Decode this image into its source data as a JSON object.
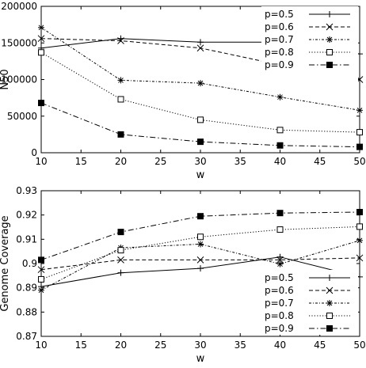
{
  "chart_data": [
    {
      "type": "line",
      "xlabel": "w",
      "ylabel": "N50",
      "x": [
        10,
        20,
        30,
        40,
        50
      ],
      "xlim": [
        10,
        50
      ],
      "xticks": [
        10,
        15,
        20,
        25,
        30,
        35,
        40,
        45,
        50
      ],
      "xtick_labels": [
        "10",
        "15",
        "20",
        "25",
        "30",
        "35",
        "40",
        "45",
        "50"
      ],
      "ylim": [
        0,
        200000
      ],
      "yticks": [
        0,
        50000,
        100000,
        150000,
        200000
      ],
      "ytick_labels": [
        "0",
        "50000",
        "100000",
        "150000",
        "200000"
      ],
      "grid": false,
      "legend_position": "top-right",
      "series": [
        {
          "name": "p=0.5",
          "values": [
            143000,
            156000,
            151000,
            151000,
            135000
          ],
          "color": "#000000",
          "line_style": "solid",
          "marker": "plus"
        },
        {
          "name": "p=0.6",
          "values": [
            156000,
            153000,
            143000,
            120000,
            100000
          ],
          "color": "#000000",
          "line_style": "dashed",
          "marker": "x"
        },
        {
          "name": "p=0.7",
          "values": [
            171000,
            99000,
            95000,
            76000,
            58000
          ],
          "color": "#000000",
          "line_style": "dotted-dashed",
          "marker": "star"
        },
        {
          "name": "p=0.8",
          "values": [
            137000,
            73000,
            45000,
            31000,
            28000
          ],
          "color": "#000000",
          "line_style": "dotted",
          "marker": "open-square"
        },
        {
          "name": "p=0.9",
          "values": [
            68000,
            25000,
            15000,
            10000,
            8000
          ],
          "color": "#000000",
          "line_style": "dash-dot",
          "marker": "filled-square"
        }
      ]
    },
    {
      "type": "line",
      "xlabel": "w",
      "ylabel": "Genome Coverage",
      "x": [
        10,
        20,
        30,
        40,
        50
      ],
      "xlim": [
        10,
        50
      ],
      "xticks": [
        10,
        15,
        20,
        25,
        30,
        35,
        40,
        45,
        50
      ],
      "xtick_labels": [
        "10",
        "15",
        "20",
        "25",
        "30",
        "35",
        "40",
        "45",
        "50"
      ],
      "ylim": [
        0.87,
        0.93
      ],
      "yticks": [
        0.87,
        0.88,
        0.89,
        0.9,
        0.91,
        0.92,
        0.93
      ],
      "ytick_labels": [
        "0.87",
        "0.88",
        "0.89",
        "0.9",
        "0.91",
        "0.92",
        "0.93"
      ],
      "grid": false,
      "legend_position": "bottom-right",
      "series": [
        {
          "name": "p=0.5",
          "values": [
            0.8905,
            0.8962,
            0.898,
            0.9027,
            0.8945
          ],
          "color": "#000000",
          "line_style": "solid",
          "marker": "plus"
        },
        {
          "name": "p=0.6",
          "values": [
            0.8975,
            0.9015,
            0.9015,
            0.9015,
            0.9023
          ],
          "color": "#000000",
          "line_style": "dashed",
          "marker": "x"
        },
        {
          "name": "p=0.7",
          "values": [
            0.889,
            0.9065,
            0.908,
            0.8998,
            0.9095
          ],
          "color": "#000000",
          "line_style": "dotted-dashed",
          "marker": "star"
        },
        {
          "name": "p=0.8",
          "values": [
            0.8935,
            0.9055,
            0.911,
            0.914,
            0.9152
          ],
          "color": "#000000",
          "line_style": "dotted",
          "marker": "open-square"
        },
        {
          "name": "p=0.9",
          "values": [
            0.9015,
            0.913,
            0.9195,
            0.9208,
            0.9212
          ],
          "color": "#000000",
          "line_style": "dash-dot",
          "marker": "filled-square"
        }
      ]
    }
  ]
}
